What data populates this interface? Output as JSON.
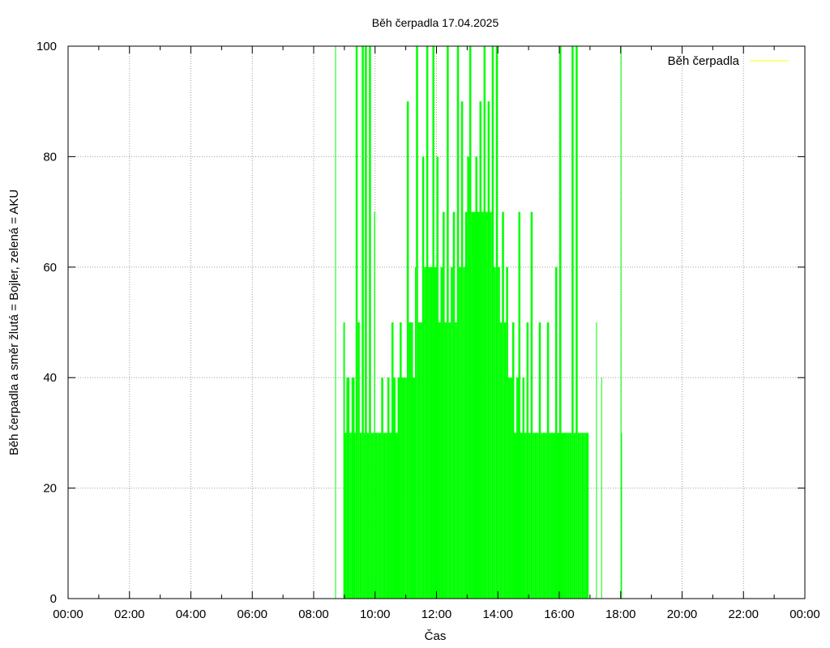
{
  "chart_data": {
    "type": "bar",
    "title": "Běh čerpadla 17.04.2025",
    "xlabel": "Čas",
    "ylabel": "Běh čerpadla a směr žlutá = Bojler, zelená = AKU",
    "xlim": [
      "00:00",
      "24:00"
    ],
    "ylim": [
      0,
      100
    ],
    "grid": true,
    "legend_position": "top-right",
    "x_ticks": [
      "00:00",
      "02:00",
      "04:00",
      "06:00",
      "08:00",
      "10:00",
      "12:00",
      "14:00",
      "16:00",
      "18:00",
      "20:00",
      "22:00",
      "00:00"
    ],
    "y_ticks": [
      "0",
      "20",
      "40",
      "60",
      "80",
      "100"
    ],
    "series": [
      {
        "name": "Běh čerpadla",
        "legend_color": "#ffff00",
        "color": "#00ff00",
        "points": [
          [
            "08:42",
            100
          ],
          [
            "08:58",
            50
          ],
          [
            "09:01",
            30
          ],
          [
            "09:04",
            40
          ],
          [
            "09:10",
            30
          ],
          [
            "09:14",
            40
          ],
          [
            "09:20",
            30
          ],
          [
            "09:22",
            100
          ],
          [
            "09:26",
            50
          ],
          [
            "09:30",
            30
          ],
          [
            "09:34",
            100
          ],
          [
            "09:38",
            30
          ],
          [
            "09:40",
            100
          ],
          [
            "09:44",
            30
          ],
          [
            "09:48",
            100
          ],
          [
            "09:52",
            30
          ],
          [
            "09:56",
            30
          ],
          [
            "09:58",
            70
          ],
          [
            "10:00",
            30
          ],
          [
            "10:04",
            30
          ],
          [
            "10:08",
            30
          ],
          [
            "10:12",
            40
          ],
          [
            "10:16",
            30
          ],
          [
            "10:20",
            30
          ],
          [
            "10:24",
            40
          ],
          [
            "10:28",
            30
          ],
          [
            "10:32",
            50
          ],
          [
            "10:36",
            40
          ],
          [
            "10:40",
            30
          ],
          [
            "10:44",
            40
          ],
          [
            "10:48",
            50
          ],
          [
            "10:52",
            40
          ],
          [
            "10:56",
            40
          ],
          [
            "11:00",
            40
          ],
          [
            "11:02",
            90
          ],
          [
            "11:06",
            50
          ],
          [
            "11:10",
            50
          ],
          [
            "11:14",
            40
          ],
          [
            "11:18",
            60
          ],
          [
            "11:20",
            100
          ],
          [
            "11:24",
            50
          ],
          [
            "11:28",
            50
          ],
          [
            "11:32",
            80
          ],
          [
            "11:36",
            60
          ],
          [
            "11:40",
            100
          ],
          [
            "11:44",
            60
          ],
          [
            "11:48",
            60
          ],
          [
            "11:52",
            100
          ],
          [
            "11:56",
            60
          ],
          [
            "12:00",
            80
          ],
          [
            "12:04",
            50
          ],
          [
            "12:08",
            60
          ],
          [
            "12:12",
            70
          ],
          [
            "12:16",
            50
          ],
          [
            "12:20",
            100
          ],
          [
            "12:24",
            50
          ],
          [
            "12:28",
            60
          ],
          [
            "12:32",
            70
          ],
          [
            "12:36",
            50
          ],
          [
            "12:40",
            100
          ],
          [
            "12:44",
            60
          ],
          [
            "12:48",
            90
          ],
          [
            "12:50",
            90
          ],
          [
            "12:52",
            60
          ],
          [
            "12:56",
            70
          ],
          [
            "13:00",
            80
          ],
          [
            "13:04",
            100
          ],
          [
            "13:08",
            70
          ],
          [
            "13:12",
            70
          ],
          [
            "13:16",
            80
          ],
          [
            "13:20",
            70
          ],
          [
            "13:24",
            90
          ],
          [
            "13:28",
            70
          ],
          [
            "13:32",
            100
          ],
          [
            "13:36",
            70
          ],
          [
            "13:40",
            90
          ],
          [
            "13:44",
            70
          ],
          [
            "13:48",
            100
          ],
          [
            "13:52",
            60
          ],
          [
            "13:56",
            100
          ],
          [
            "14:00",
            60
          ],
          [
            "14:04",
            50
          ],
          [
            "14:08",
            70
          ],
          [
            "14:12",
            50
          ],
          [
            "14:16",
            60
          ],
          [
            "14:20",
            40
          ],
          [
            "14:24",
            40
          ],
          [
            "14:28",
            50
          ],
          [
            "14:32",
            30
          ],
          [
            "14:36",
            40
          ],
          [
            "14:40",
            70
          ],
          [
            "14:44",
            30
          ],
          [
            "14:48",
            40
          ],
          [
            "14:52",
            30
          ],
          [
            "14:56",
            50
          ],
          [
            "15:00",
            30
          ],
          [
            "15:04",
            70
          ],
          [
            "15:08",
            30
          ],
          [
            "15:12",
            30
          ],
          [
            "15:16",
            30
          ],
          [
            "15:20",
            50
          ],
          [
            "15:24",
            30
          ],
          [
            "15:28",
            30
          ],
          [
            "15:32",
            30
          ],
          [
            "15:36",
            50
          ],
          [
            "15:40",
            30
          ],
          [
            "15:44",
            30
          ],
          [
            "15:48",
            30
          ],
          [
            "15:52",
            60
          ],
          [
            "15:56",
            30
          ],
          [
            "16:00",
            100
          ],
          [
            "16:04",
            30
          ],
          [
            "16:08",
            30
          ],
          [
            "16:12",
            30
          ],
          [
            "16:16",
            30
          ],
          [
            "16:20",
            30
          ],
          [
            "16:24",
            100
          ],
          [
            "16:28",
            30
          ],
          [
            "16:32",
            100
          ],
          [
            "16:36",
            30
          ],
          [
            "16:40",
            30
          ],
          [
            "16:44",
            30
          ],
          [
            "16:48",
            30
          ],
          [
            "16:52",
            30
          ],
          [
            "16:56",
            30
          ],
          [
            "17:12",
            50
          ],
          [
            "17:22",
            40
          ],
          [
            "18:00",
            100
          ],
          [
            "18:01",
            30
          ]
        ]
      }
    ]
  }
}
